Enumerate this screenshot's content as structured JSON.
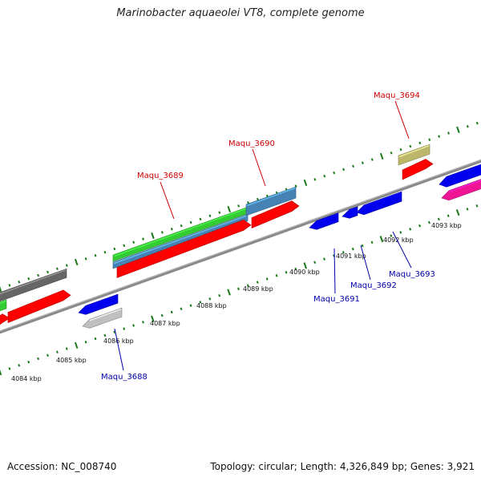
{
  "title": "Marinobacter aquaeolei VT8, complete genome",
  "footer": {
    "accession": "Accession: NC_008740",
    "stats": "Topology: circular; Length: 4,326,849 bp; Genes: 3,921"
  },
  "colors": {
    "backbone": "#8a8a8a",
    "tick": "#1a7a1a",
    "forward_label": "#cc0000",
    "reverse_label": "#0000aa",
    "red": "#ff0000",
    "green": "#33cc33",
    "steelblue": "#4682b4",
    "blue": "#0000ee",
    "gray": "#666666",
    "lightgray": "#c0c0c0",
    "khaki": "#bdb76b",
    "pink": "#ee1493"
  },
  "kbp_labels": [
    "4084 kbp",
    "4085 kbp",
    "4086 kbp",
    "4087 kbp",
    "4088 kbp",
    "4089 kbp",
    "4090 kbp",
    "4091 kbp",
    "4092 kbp",
    "4093 kbp"
  ],
  "gene_labels": [
    {
      "id": "Maqu_3688",
      "strand": "reverse"
    },
    {
      "id": "Maqu_3689",
      "strand": "forward"
    },
    {
      "id": "Maqu_3690",
      "strand": "forward"
    },
    {
      "id": "Maqu_3691",
      "strand": "reverse"
    },
    {
      "id": "Maqu_3692",
      "strand": "reverse"
    },
    {
      "id": "Maqu_3693",
      "strand": "reverse"
    },
    {
      "id": "Maqu_3694",
      "strand": "forward"
    }
  ],
  "features": [
    {
      "name": "feature-gray-left",
      "color": "gray",
      "strand": "forward"
    },
    {
      "name": "feature-green-left",
      "color": "green",
      "strand": "forward"
    },
    {
      "name": "feature-red-left-a",
      "color": "red",
      "strand": "forward"
    },
    {
      "name": "feature-red-left-b",
      "color": "red",
      "strand": "forward"
    },
    {
      "name": "feature-blue-3688",
      "color": "blue",
      "strand": "reverse"
    },
    {
      "name": "feature-lightgray-3688",
      "color": "lightgray",
      "strand": "reverse"
    },
    {
      "name": "feature-green-3689",
      "color": "green",
      "strand": "forward"
    },
    {
      "name": "feature-steelblue-3689",
      "color": "steelblue",
      "strand": "forward"
    },
    {
      "name": "feature-steelblue-3690",
      "color": "steelblue",
      "strand": "forward"
    },
    {
      "name": "feature-red-3689",
      "color": "red",
      "strand": "forward"
    },
    {
      "name": "feature-red-3690",
      "color": "red",
      "strand": "forward"
    },
    {
      "name": "feature-blue-3691",
      "color": "blue",
      "strand": "reverse"
    },
    {
      "name": "feature-blue-3692",
      "color": "blue",
      "strand": "reverse"
    },
    {
      "name": "feature-blue-3693",
      "color": "blue",
      "strand": "reverse"
    },
    {
      "name": "feature-khaki-3694",
      "color": "khaki",
      "strand": "forward"
    },
    {
      "name": "feature-red-3694",
      "color": "red",
      "strand": "forward"
    },
    {
      "name": "feature-blue-right",
      "color": "blue",
      "strand": "reverse"
    },
    {
      "name": "feature-pink-right",
      "color": "pink",
      "strand": "reverse"
    }
  ]
}
